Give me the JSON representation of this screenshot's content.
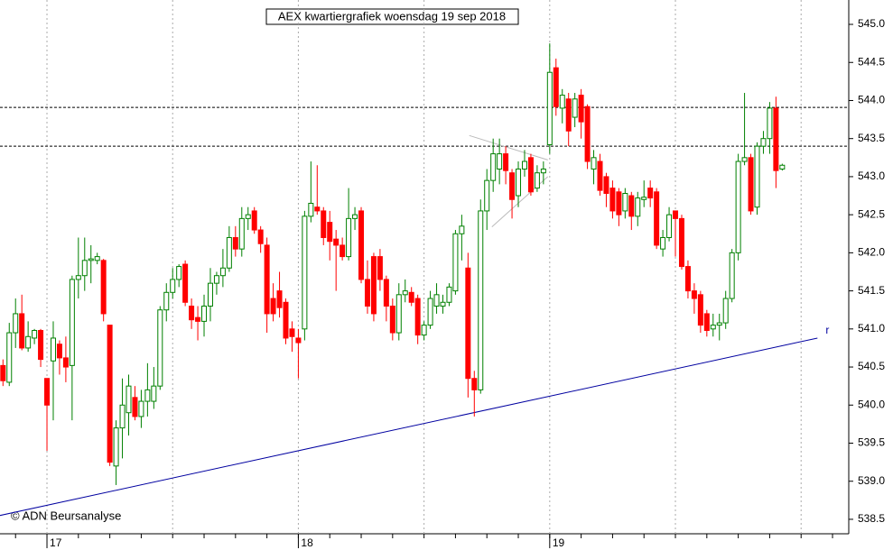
{
  "chart_data": {
    "type": "candlestick",
    "title": "AEX kwartiergrafiek woensdag 19 sep 2018",
    "source": "© ADN Beursanalyse",
    "categories": [
      null,
      null,
      null,
      null,
      null,
      null,
      null,
      "17",
      null,
      null,
      null,
      null,
      null,
      null,
      null,
      null,
      null,
      null,
      null,
      null,
      null,
      null,
      null,
      null,
      null,
      null,
      null,
      null,
      null,
      null,
      null,
      null,
      null,
      null,
      null,
      null,
      null,
      null,
      null,
      null,
      null,
      null,
      null,
      null,
      null,
      null,
      null,
      "18",
      null,
      null,
      null,
      null,
      null,
      null,
      null,
      null,
      null,
      null,
      null,
      null,
      null,
      null,
      null,
      null,
      null,
      null,
      null,
      null,
      null,
      null,
      null,
      null,
      null,
      null,
      null,
      null,
      null,
      null,
      null,
      null,
      null,
      null,
      null,
      null,
      null,
      null,
      null,
      "19",
      null,
      null,
      null,
      null,
      null,
      null,
      null,
      null,
      null,
      null,
      null,
      null,
      null,
      null,
      null,
      null,
      null,
      null,
      null,
      null,
      null,
      null,
      null,
      null,
      null,
      null,
      null,
      null,
      null,
      null,
      null,
      null,
      null,
      null,
      null,
      null,
      null
    ],
    "candles": [
      [
        540.52,
        540.6,
        540.25,
        540.32
      ],
      [
        540.3,
        541.08,
        540.25,
        540.95
      ],
      [
        540.95,
        541.4,
        540.75,
        541.2
      ],
      [
        541.2,
        541.45,
        540.72,
        540.75
      ],
      [
        540.75,
        541.1,
        540.7,
        540.9
      ],
      [
        540.88,
        541.0,
        540.8,
        540.98
      ],
      [
        540.98,
        541.0,
        540.5,
        540.6
      ],
      [
        540.35,
        540.35,
        539.4,
        540.0
      ],
      [
        540.58,
        541.1,
        539.8,
        540.88
      ],
      [
        540.8,
        540.85,
        540.4,
        540.62
      ],
      [
        540.62,
        540.9,
        540.3,
        540.5
      ],
      [
        540.52,
        541.7,
        539.8,
        541.65
      ],
      [
        541.65,
        542.2,
        541.4,
        541.7
      ],
      [
        541.7,
        542.2,
        541.5,
        541.9
      ],
      [
        541.9,
        542.1,
        541.6,
        541.92
      ],
      [
        541.9,
        542.0,
        541.85,
        541.95
      ],
      [
        541.9,
        541.92,
        541.1,
        541.2
      ],
      [
        541.05,
        541.05,
        539.2,
        539.25
      ],
      [
        539.2,
        539.8,
        538.95,
        539.7
      ],
      [
        539.7,
        540.35,
        539.3,
        540.0
      ],
      [
        539.9,
        540.4,
        539.6,
        540.25
      ],
      [
        540.1,
        540.25,
        539.8,
        539.85
      ],
      [
        539.85,
        540.2,
        539.7,
        540.05
      ],
      [
        540.05,
        540.55,
        539.85,
        540.2
      ],
      [
        540.05,
        540.5,
        539.95,
        540.25
      ],
      [
        540.25,
        541.3,
        540.2,
        541.25
      ],
      [
        541.25,
        541.6,
        541.1,
        541.48
      ],
      [
        541.48,
        541.8,
        541.4,
        541.65
      ],
      [
        541.65,
        541.85,
        541.55,
        541.82
      ],
      [
        541.85,
        541.9,
        541.3,
        541.35
      ],
      [
        541.3,
        541.4,
        541.0,
        541.12
      ],
      [
        541.15,
        541.3,
        540.85,
        541.1
      ],
      [
        541.1,
        541.45,
        540.9,
        541.3
      ],
      [
        541.3,
        541.8,
        541.1,
        541.6
      ],
      [
        541.6,
        541.75,
        541.45,
        541.7
      ],
      [
        541.7,
        542.05,
        541.55,
        541.8
      ],
      [
        541.8,
        542.35,
        541.75,
        542.2
      ],
      [
        542.2,
        542.35,
        541.95,
        542.05
      ],
      [
        542.05,
        542.6,
        541.95,
        542.45
      ],
      [
        542.45,
        542.6,
        542.3,
        542.5
      ],
      [
        542.55,
        542.6,
        542.25,
        542.3
      ],
      [
        542.3,
        542.35,
        542.0,
        542.12
      ],
      [
        542.1,
        542.2,
        540.95,
        541.2
      ],
      [
        541.4,
        541.6,
        541.1,
        541.2
      ],
      [
        541.5,
        541.75,
        541.15,
        541.28
      ],
      [
        541.35,
        541.4,
        540.8,
        540.88
      ],
      [
        541.0,
        541.1,
        540.7,
        540.9
      ],
      [
        540.88,
        541.0,
        540.35,
        540.82
      ],
      [
        541.0,
        542.55,
        540.85,
        542.48
      ],
      [
        542.48,
        543.2,
        542.4,
        542.65
      ],
      [
        542.6,
        543.15,
        542.5,
        542.55
      ],
      [
        542.55,
        542.6,
        542.1,
        542.2
      ],
      [
        542.4,
        542.55,
        541.9,
        542.15
      ],
      [
        542.18,
        542.3,
        541.5,
        542.1
      ],
      [
        542.1,
        542.2,
        541.9,
        541.95
      ],
      [
        541.95,
        542.85,
        541.9,
        542.45
      ],
      [
        542.45,
        542.6,
        542.3,
        542.5
      ],
      [
        542.55,
        542.6,
        541.6,
        541.65
      ],
      [
        541.65,
        541.9,
        541.2,
        541.3
      ],
      [
        541.95,
        542.0,
        541.1,
        541.2
      ],
      [
        541.95,
        542.05,
        541.5,
        541.65
      ],
      [
        541.65,
        541.7,
        541.1,
        541.3
      ],
      [
        541.3,
        541.4,
        540.85,
        540.95
      ],
      [
        540.95,
        541.6,
        540.85,
        541.45
      ],
      [
        541.45,
        541.65,
        541.35,
        541.5
      ],
      [
        541.48,
        541.55,
        541.3,
        541.35
      ],
      [
        541.4,
        541.45,
        540.8,
        540.92
      ],
      [
        540.92,
        541.1,
        540.85,
        541.05
      ],
      [
        541.05,
        541.5,
        541.0,
        541.4
      ],
      [
        541.3,
        541.6,
        541.2,
        541.45
      ],
      [
        541.3,
        541.45,
        541.2,
        541.35
      ],
      [
        541.35,
        541.6,
        541.3,
        541.55
      ],
      [
        541.5,
        542.3,
        541.45,
        542.25
      ],
      [
        542.25,
        542.5,
        541.9,
        542.35
      ],
      [
        541.8,
        542.0,
        540.1,
        540.35
      ],
      [
        540.35,
        540.45,
        539.85,
        540.2
      ],
      [
        540.2,
        542.7,
        540.15,
        542.55
      ],
      [
        542.55,
        543.1,
        542.3,
        542.95
      ],
      [
        542.95,
        543.5,
        542.8,
        543.3
      ],
      [
        543.1,
        543.5,
        542.9,
        543.3
      ],
      [
        543.3,
        543.4,
        542.9,
        543.08
      ],
      [
        543.05,
        543.1,
        542.45,
        542.7
      ],
      [
        542.75,
        543.2,
        542.6,
        543.1
      ],
      [
        543.1,
        543.35,
        543.0,
        543.2
      ],
      [
        543.25,
        543.3,
        542.75,
        542.8
      ],
      [
        542.85,
        543.15,
        542.8,
        543.05
      ],
      [
        543.05,
        543.2,
        542.9,
        543.1
      ],
      [
        543.42,
        544.75,
        543.3,
        544.37
      ],
      [
        544.43,
        544.55,
        543.8,
        543.92
      ],
      [
        543.9,
        544.15,
        543.7,
        544.07
      ],
      [
        544.02,
        544.1,
        543.4,
        543.6
      ],
      [
        543.78,
        544.1,
        543.65,
        544.02
      ],
      [
        544.07,
        544.15,
        543.5,
        543.72
      ],
      [
        543.92,
        543.95,
        543.1,
        543.2
      ],
      [
        543.1,
        543.35,
        542.9,
        543.25
      ],
      [
        543.2,
        543.3,
        542.75,
        542.82
      ],
      [
        543.0,
        543.05,
        542.6,
        542.78
      ],
      [
        542.85,
        542.95,
        542.45,
        542.55
      ],
      [
        542.8,
        542.85,
        542.35,
        542.5
      ],
      [
        542.55,
        542.85,
        542.45,
        542.78
      ],
      [
        542.75,
        542.8,
        542.3,
        542.48
      ],
      [
        542.48,
        542.8,
        542.35,
        542.72
      ],
      [
        542.7,
        542.95,
        542.6,
        542.73
      ],
      [
        542.85,
        542.95,
        542.6,
        542.72
      ],
      [
        542.8,
        542.85,
        542.05,
        542.1
      ],
      [
        542.05,
        542.3,
        541.95,
        542.2
      ],
      [
        542.2,
        542.6,
        542.15,
        542.5
      ],
      [
        542.55,
        542.55,
        541.95,
        542.45
      ],
      [
        542.45,
        542.5,
        541.78,
        541.82
      ],
      [
        541.82,
        541.9,
        541.4,
        541.5
      ],
      [
        541.5,
        541.6,
        541.2,
        541.4
      ],
      [
        541.45,
        541.5,
        540.95,
        541.05
      ],
      [
        541.2,
        541.25,
        540.9,
        540.98
      ],
      [
        541.0,
        541.2,
        540.9,
        541.05
      ],
      [
        541.05,
        541.2,
        540.85,
        541.08
      ],
      [
        541.08,
        541.5,
        541.0,
        541.4
      ],
      [
        541.4,
        542.05,
        541.35,
        542.0
      ],
      [
        542.0,
        543.3,
        541.9,
        543.2
      ],
      [
        543.2,
        544.1,
        543.15,
        543.25
      ],
      [
        543.25,
        543.3,
        542.5,
        542.55
      ],
      [
        542.6,
        543.45,
        542.5,
        543.4
      ],
      [
        543.4,
        543.6,
        543.3,
        543.5
      ],
      [
        543.5,
        543.98,
        543.3,
        543.9
      ],
      [
        543.9,
        544.05,
        542.85,
        543.08
      ],
      [
        543.1,
        543.17,
        543.08,
        543.15
      ]
    ],
    "up_color": "#008000",
    "down_color": "#ff0000",
    "levels": [
      543.91,
      543.4
    ],
    "trendline": {
      "label": "r",
      "x": [
        -0.5,
        129.6
      ],
      "y": [
        538.55,
        540.88
      ],
      "color": "#0000a0"
    },
    "guide_lines": [
      {
        "x": [
          74.2,
          86.7
        ],
        "y": [
          543.54,
          543.22
        ]
      },
      {
        "x": [
          77.8,
          86.7
        ],
        "y": [
          542.34,
          543.0
        ]
      }
    ],
    "ylim": [
      538.31,
      545.32
    ],
    "yticks": [
      538.5,
      {
        "value": 539,
        "label": "539.0"
      },
      539.5,
      {
        "value": 540,
        "label": "540.0"
      },
      540.5,
      {
        "value": 541,
        "label": "541.0"
      },
      541.5,
      {
        "value": 542,
        "label": "542.0"
      },
      542.5,
      {
        "value": 543,
        "label": "543.0"
      },
      543.5,
      {
        "value": 544,
        "label": "544.0"
      },
      544.5,
      {
        "value": 545,
        "label": "545.0"
      }
    ],
    "grid": true
  }
}
